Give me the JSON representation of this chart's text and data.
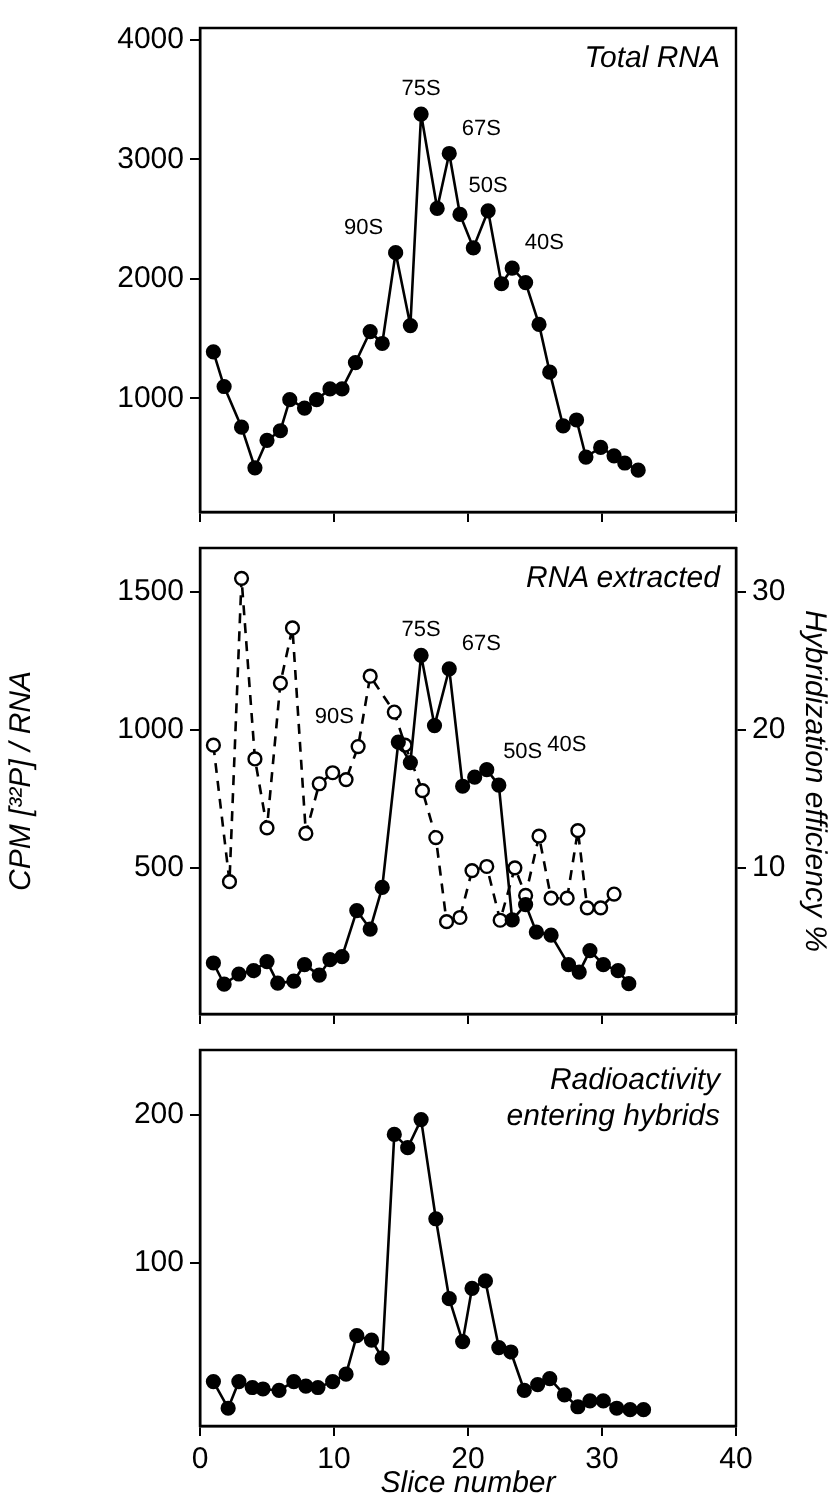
{
  "chart_data": [
    {
      "type": "line",
      "title": "Total RNA",
      "xlim": [
        0,
        40
      ],
      "xticks": [
        0,
        10,
        20,
        30,
        40
      ],
      "ylim": [
        50,
        4100
      ],
      "yticks": [
        1000,
        2000,
        3000,
        4000
      ],
      "tick_labels": "y",
      "grid": false,
      "legend": false,
      "marker": "circle",
      "series": [
        {
          "color": "#000000",
          "line_style": "solid",
          "x": [
            1.0,
            1.8,
            3.1,
            4.1,
            5.0,
            6.0,
            6.7,
            7.8,
            8.7,
            9.7,
            10.6,
            11.6,
            12.7,
            13.6,
            14.6,
            15.7,
            16.5,
            17.7,
            18.6,
            19.4,
            20.4,
            21.5,
            22.5,
            23.3,
            24.3,
            25.3,
            26.1,
            27.1,
            28.1,
            28.8,
            29.9,
            30.9,
            31.7,
            32.7
          ],
          "values": [
            1390,
            1100,
            760,
            420,
            650,
            730,
            990,
            920,
            990,
            1080,
            1080,
            1300,
            1560,
            1460,
            2220,
            1610,
            3380,
            2590,
            3050,
            2540,
            2260,
            2570,
            1960,
            2090,
            1970,
            1620,
            1220,
            770,
            820,
            510,
            590,
            520,
            460,
            400
          ]
        }
      ],
      "annotations": [
        {
          "text": "90S",
          "x": 14.6,
          "y": 2220
        },
        {
          "text": "75S",
          "x": 16.5,
          "y": 3380
        },
        {
          "text": "67S",
          "x": 18.6,
          "y": 3050
        },
        {
          "text": "50S",
          "x": 21.5,
          "y": 2570
        },
        {
          "text": "40S",
          "x": 23.3,
          "y": 2090
        }
      ]
    },
    {
      "type": "line",
      "title": "RNA extracted",
      "ylabel": "CPM [³²P] / RNA",
      "y2label": "Hybridization efficiency %",
      "xlim": [
        0,
        40
      ],
      "xticks": [
        0,
        10,
        20,
        30,
        40
      ],
      "ylim": [
        -30,
        1660
      ],
      "yticks": [
        500,
        1000,
        1500
      ],
      "y2lim": [
        -0.6,
        33.2
      ],
      "y2ticks": [
        10,
        20,
        30
      ],
      "tick_labels": "y",
      "grid": false,
      "legend": false,
      "marker": "circle",
      "series": [
        {
          "color": "#000000",
          "line_style": "solid",
          "axis": "y",
          "x": [
            1.0,
            1.8,
            2.9,
            4.0,
            5.0,
            5.8,
            7.0,
            7.8,
            8.9,
            9.7,
            10.6,
            11.7,
            12.7,
            13.6,
            14.8,
            15.7,
            16.5,
            17.5,
            18.6,
            19.6,
            20.5,
            21.4,
            22.3,
            23.3,
            24.3,
            25.1,
            26.2,
            27.5,
            28.3,
            29.1,
            30.1,
            31.2,
            32.0
          ],
          "values": [
            155,
            78,
            115,
            127,
            160,
            82,
            89,
            149,
            111,
            167,
            178,
            345,
            278,
            429,
            956,
            882,
            1271,
            1016,
            1222,
            796,
            829,
            856,
            800,
            311,
            367,
            267,
            256,
            149,
            122,
            200,
            149,
            127,
            80
          ]
        },
        {
          "color": "#000000",
          "line_style": "dashed",
          "axis": "y2",
          "x": [
            1.0,
            2.2,
            3.1,
            4.1,
            5.0,
            6.0,
            6.9,
            7.9,
            8.9,
            9.9,
            10.9,
            11.8,
            12.7,
            14.5,
            15.3,
            16.6,
            17.6,
            18.4,
            19.4,
            20.3,
            21.4,
            22.4,
            23.5,
            24.3,
            25.3,
            26.2,
            27.4,
            28.2,
            28.9,
            29.9,
            30.9
          ],
          "values": [
            18.9,
            9.0,
            31.0,
            17.9,
            12.9,
            23.4,
            27.4,
            12.5,
            16.1,
            16.9,
            16.4,
            18.8,
            23.9,
            21.3,
            18.9,
            15.6,
            12.2,
            6.1,
            6.4,
            9.8,
            10.1,
            6.2,
            10.0,
            8.0,
            12.3,
            7.8,
            7.8,
            12.7,
            7.1,
            7.1,
            8.1
          ]
        }
      ],
      "annotations": [
        {
          "text": "90S",
          "x": 14.8,
          "y": 956
        },
        {
          "text": "75S",
          "x": 16.5,
          "y": 1271
        },
        {
          "text": "67S",
          "x": 18.6,
          "y": 1222
        },
        {
          "text": "50S",
          "x": 20.5,
          "y": 829
        },
        {
          "text": "40S",
          "x": 21.4,
          "y": 856
        }
      ]
    },
    {
      "type": "line",
      "title": "Radioactivity entering hybrids",
      "xlabel": "Slice number",
      "xlim": [
        0,
        40
      ],
      "xticks": [
        0,
        10,
        20,
        30,
        40
      ],
      "ylim": [
        -10,
        244
      ],
      "yticks": [
        100,
        200
      ],
      "grid": false,
      "legend": false,
      "marker": "circle",
      "series": [
        {
          "color": "#000000",
          "line_style": "solid",
          "x": [
            1.0,
            2.1,
            2.9,
            3.9,
            4.7,
            5.9,
            7.0,
            7.9,
            8.8,
            9.9,
            10.9,
            11.7,
            12.8,
            13.6,
            14.5,
            15.5,
            16.5,
            17.6,
            18.6,
            19.6,
            20.3,
            21.3,
            22.3,
            23.2,
            24.2,
            25.2,
            26.1,
            27.2,
            28.2,
            29.1,
            30.1,
            31.1,
            32.1,
            33.1
          ],
          "values": [
            20,
            2,
            20,
            16,
            15,
            14,
            20,
            17,
            16,
            20,
            25,
            51,
            48,
            36,
            187,
            178,
            197,
            130,
            76,
            47,
            83,
            88,
            43,
            40,
            14,
            18,
            22,
            11,
            3,
            7,
            7,
            2,
            1,
            1
          ]
        }
      ]
    }
  ]
}
